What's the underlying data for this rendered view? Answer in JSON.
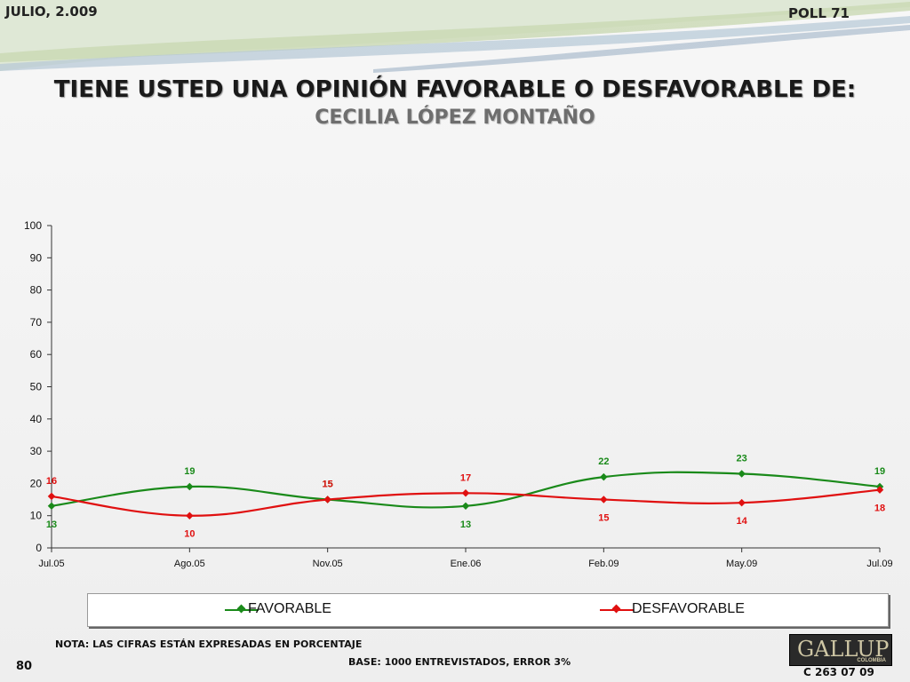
{
  "header": {
    "date": "JULIO, 2.009",
    "poll": "POLL 71"
  },
  "title": "TIENE USTED UNA OPINIÓN FAVORABLE O DESFAVORABLE DE:",
  "subtitle": "CECILIA LÓPEZ MONTAÑO",
  "colors": {
    "favorable": "#1a8a1a",
    "desfavorable": "#e01010",
    "axis": "#333333"
  },
  "chart_data": {
    "type": "line",
    "categories": [
      "Jul.05",
      "Ago.05",
      "Nov.05",
      "Ene.06",
      "Feb.09",
      "May.09",
      "Jul.09"
    ],
    "ylim": [
      0,
      100
    ],
    "yticks": [
      0,
      10,
      20,
      30,
      40,
      50,
      60,
      70,
      80,
      90,
      100
    ],
    "grid": false,
    "legend_position": "bottom",
    "series": [
      {
        "name": "FAVORABLE",
        "values": [
          13,
          19,
          15,
          13,
          22,
          23,
          19
        ]
      },
      {
        "name": "DESFAVORABLE",
        "values": [
          16,
          10,
          15,
          17,
          15,
          14,
          18
        ]
      }
    ]
  },
  "legend": {
    "favorable": "FAVORABLE",
    "desfavorable": "DESFAVORABLE"
  },
  "footer": {
    "note": "NOTA: LAS CIFRAS ESTÁN EXPRESADAS EN PORCENTAJE",
    "base": "BASE: 1000 ENTREVISTADOS, ERROR 3%",
    "page": "80",
    "code": "C 263 07 09",
    "logo": "GALLUP",
    "logo_sub": "COLOMBIA"
  }
}
